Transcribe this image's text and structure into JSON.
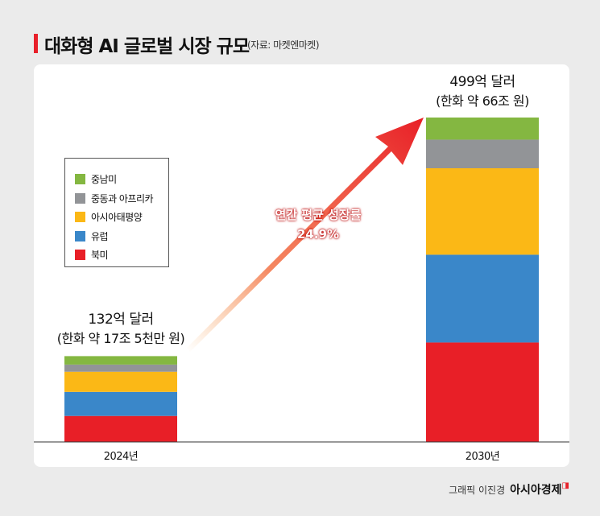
{
  "header": {
    "title": "대화형 AI 글로벌 시장 규모",
    "source": "(자료: 마켓엔마켓)"
  },
  "chart_data": {
    "type": "bar",
    "stacked": true,
    "categories": [
      "2024년",
      "2030년"
    ],
    "series": [
      {
        "name": "북미",
        "color": "#e81f27",
        "values": [
          40,
          153
        ]
      },
      {
        "name": "유럽",
        "color": "#3a87c9",
        "values": [
          37,
          135
        ]
      },
      {
        "name": "아시아태평양",
        "color": "#fbb816",
        "values": [
          31,
          133
        ]
      },
      {
        "name": "중동과 아프리카",
        "color": "#929497",
        "values": [
          11,
          44
        ]
      },
      {
        "name": "중남미",
        "color": "#84b741",
        "values": [
          13,
          34
        ]
      }
    ],
    "totals": [
      {
        "label": "132억 달러",
        "sub": "(한화 약 17조 5천만 원)"
      },
      {
        "label": "499억 달러",
        "sub": "(한화 약 66조 원)"
      }
    ],
    "ylim": [
      0,
      499
    ],
    "grid": false,
    "legend": "left",
    "legend_order": [
      "중남미",
      "중동과 아프리카",
      "아시아태평양",
      "유럽",
      "북미"
    ],
    "annotation": {
      "line1": "연간 평균 성장률",
      "line2": "24.9%"
    }
  },
  "footer": {
    "credit": "그래픽 이진경",
    "brand": "아시아경제",
    "brand_mark": "ㅁ"
  }
}
